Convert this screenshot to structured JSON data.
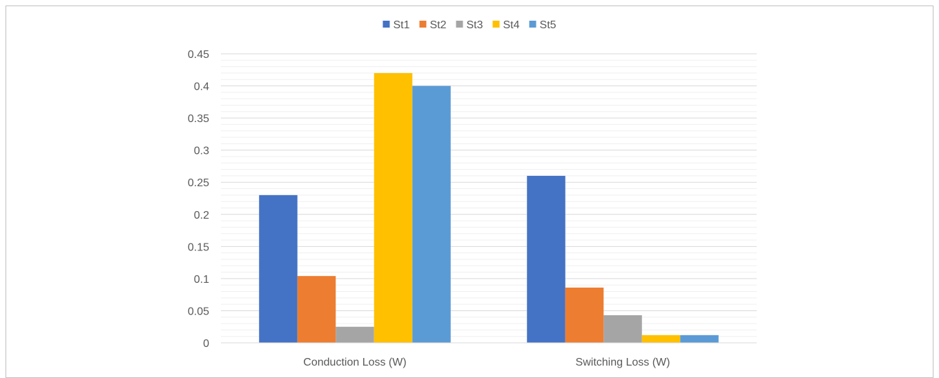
{
  "chart_data": {
    "type": "bar",
    "categories": [
      "Conduction Loss (W)",
      "Switching Loss (W)"
    ],
    "series": [
      {
        "name": "St1",
        "color": "#4472C4",
        "values": [
          0.23,
          0.26
        ]
      },
      {
        "name": "St2",
        "color": "#ED7D31",
        "values": [
          0.104,
          0.086
        ]
      },
      {
        "name": "St3",
        "color": "#A5A5A5",
        "values": [
          0.025,
          0.043
        ]
      },
      {
        "name": "St4",
        "color": "#FFC000",
        "values": [
          0.42,
          0.012
        ]
      },
      {
        "name": "St5",
        "color": "#5B9BD5",
        "values": [
          0.4,
          0.012
        ]
      }
    ],
    "title": "",
    "xlabel": "",
    "ylabel": "",
    "ylim": [
      0,
      0.45
    ],
    "yticks": [
      "0",
      "0.05",
      "0.1",
      "0.15",
      "0.2",
      "0.25",
      "0.3",
      "0.35",
      "0.4",
      "0.45"
    ],
    "legend": "top",
    "grid": true
  }
}
